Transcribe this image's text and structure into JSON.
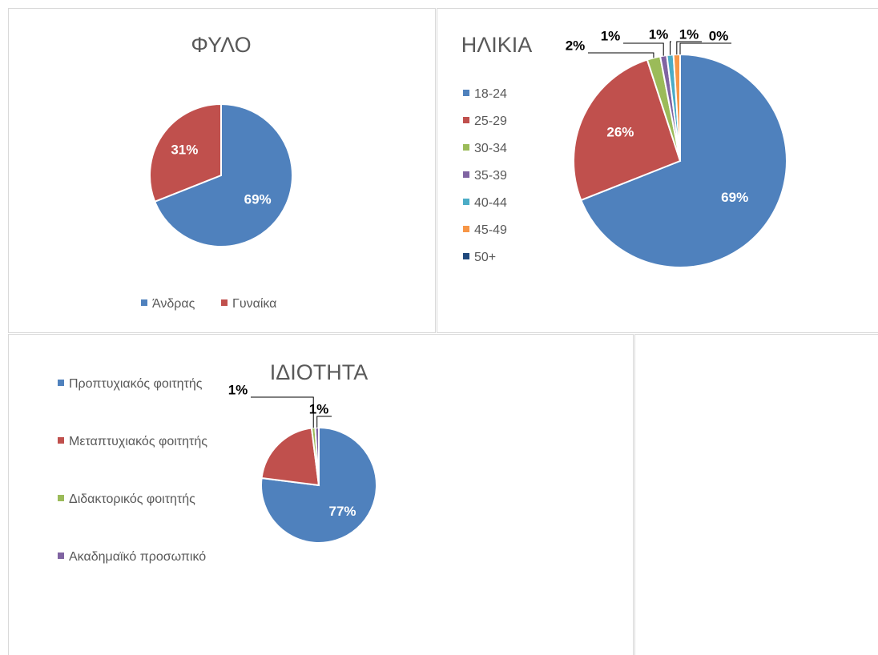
{
  "chart_data": [
    {
      "type": "pie",
      "title": "ΦΥΛΟ",
      "categories": [
        "Άνδρας",
        "Γυναίκα"
      ],
      "values": [
        69,
        31
      ],
      "value_labels": [
        "69%",
        "31%"
      ],
      "colors": [
        "#4f81bd",
        "#c0504d"
      ],
      "legend": "bottom"
    },
    {
      "type": "pie",
      "title": "ΗΛΙΚΙΑ",
      "categories": [
        "18-24",
        "25-29",
        "30-34",
        "35-39",
        "40-44",
        "45-49",
        "50+"
      ],
      "values": [
        69,
        26,
        2,
        1,
        1,
        1,
        0
      ],
      "value_labels": [
        "69%",
        "26%",
        "2%",
        "1%",
        "1%",
        "1%",
        "0%"
      ],
      "colors": [
        "#4f81bd",
        "#c0504d",
        "#9bbb59",
        "#8064a2",
        "#4bacc6",
        "#f79646",
        "#1f497d"
      ],
      "legend": "left"
    },
    {
      "type": "pie",
      "title": "ΙΔΙΟΤΗΤΑ",
      "categories": [
        "Προπτυχιακός φοιτητής",
        "Μεταπτυχιακός φοιτητής",
        "Διδακτορικός φοιτητής",
        "Ακαδημαϊκό προσωπικό"
      ],
      "values": [
        77,
        21,
        1,
        1
      ],
      "value_labels": [
        "77%",
        null,
        "1%",
        "1%"
      ],
      "colors": [
        "#4f81bd",
        "#c0504d",
        "#9bbb59",
        "#8064a2"
      ],
      "legend": "left"
    }
  ]
}
